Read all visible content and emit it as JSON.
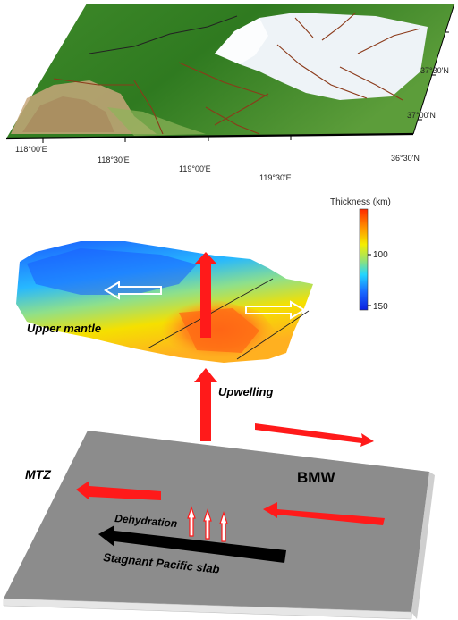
{
  "map": {
    "lon_labels": [
      "118°00'E",
      "118°30'E",
      "119°00'E",
      "119°30'E"
    ],
    "lat_labels": [
      "37°30'N",
      "37°00'N",
      "36°30'N"
    ]
  },
  "colorbar": {
    "title": "Thickness (km)",
    "ticks": [
      "100",
      "150"
    ]
  },
  "labels": {
    "upper_mantle": "Upper mantle",
    "upwelling": "Upwelling",
    "mtz": "MTZ",
    "bmw": "BMW",
    "dehydration": "Dehydration",
    "slab": "Stagnant Pacific slab"
  },
  "colors": {
    "arrow_red": "#ff1a1a",
    "slab_plane": "#8c8c8c",
    "sea": "#eef3f7",
    "land_low": "#2f7a20",
    "land_high": "#c7a77a"
  }
}
